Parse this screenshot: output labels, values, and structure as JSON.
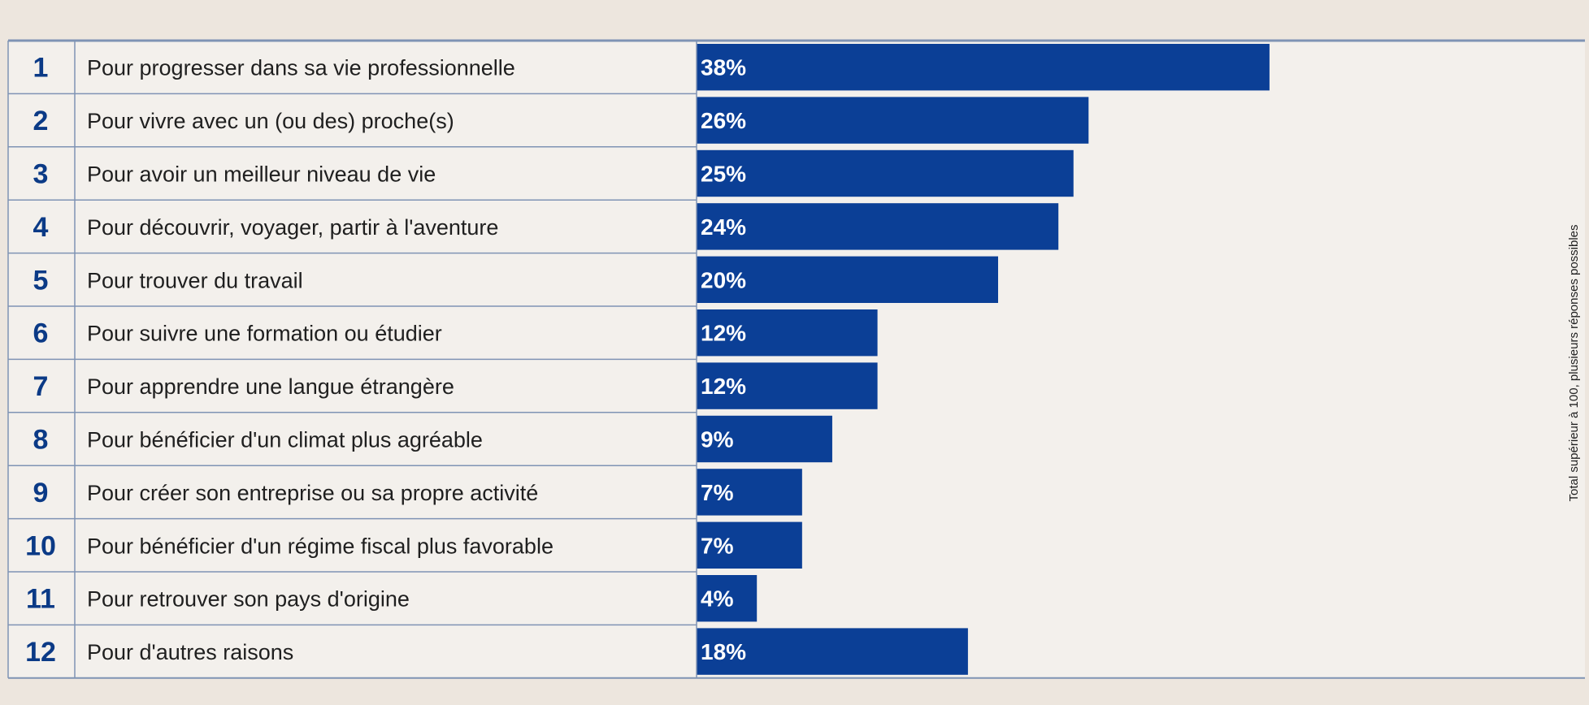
{
  "chart_data": {
    "type": "bar",
    "orientation": "horizontal",
    "ranks": [
      "1",
      "2",
      "3",
      "4",
      "5",
      "6",
      "7",
      "8",
      "9",
      "10",
      "11",
      "12"
    ],
    "categories": [
      "Pour progresser dans sa vie professionnelle",
      "Pour vivre avec un (ou des) proche(s)",
      "Pour avoir un meilleur niveau de vie",
      "Pour découvrir, voyager, partir à l'aventure",
      "Pour trouver du travail",
      "Pour suivre une formation ou étudier",
      "Pour apprendre une langue étrangère",
      "Pour bénéficier d'un climat plus agréable",
      "Pour créer son entreprise ou sa propre activité",
      "Pour bénéficier d'un régime fiscal plus favorable",
      "Pour retrouver son pays d'origine",
      "Pour d'autres raisons"
    ],
    "values": [
      38,
      26,
      25,
      24,
      20,
      12,
      12,
      9,
      7,
      7,
      4,
      18
    ],
    "value_labels": [
      "38%",
      "26%",
      "25%",
      "24%",
      "20%",
      "12%",
      "12%",
      "9%",
      "7%",
      "7%",
      "4%",
      "18%"
    ],
    "unit": "%",
    "side_note": "Total supérieur à 100, plusieurs réponses possibles",
    "colors": {
      "bar": "#0b3f96",
      "rank": "#0b3a86",
      "background": "#ede6de",
      "panel": "#f3f0ec",
      "grid": "#7f93b4"
    }
  }
}
